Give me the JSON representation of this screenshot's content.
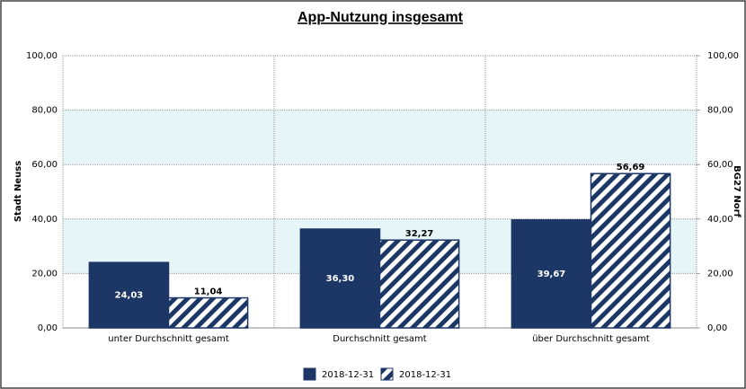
{
  "chart_data": {
    "type": "bar",
    "title": "App-Nutzung insgesamt",
    "ylabel": "Stadt Neuss",
    "y2label": "BG27 Norf",
    "categories": [
      "unter Durchschnitt gesamt",
      "Durchschnitt gesamt",
      "über Durchschnitt gesamt"
    ],
    "series": [
      {
        "name": "2018-12-31",
        "color": "#1c3766",
        "hatch": false,
        "values": [
          24.03,
          36.3,
          39.67
        ],
        "value_labels": [
          "24,03",
          "36,30",
          "39,67"
        ]
      },
      {
        "name": "2018-12-31",
        "color": "#1c3766",
        "hatch": true,
        "axis": "y2",
        "values": [
          11.04,
          32.27,
          56.69
        ],
        "value_labels": [
          "11,04",
          "32,27",
          "56,69"
        ]
      }
    ],
    "ylim": [
      0,
      100
    ],
    "yticks": [
      {
        "value": 0,
        "label": "0,00"
      },
      {
        "value": 20,
        "label": "20,00"
      },
      {
        "value": 40,
        "label": "40,00"
      },
      {
        "value": 60,
        "label": "60,00"
      },
      {
        "value": 80,
        "label": "80,00"
      },
      {
        "value": 100,
        "label": "100,00"
      }
    ],
    "y2lim": [
      0,
      100
    ],
    "y2ticks": [
      {
        "value": 0,
        "label": "0,00"
      },
      {
        "value": 20,
        "label": "20,00"
      },
      {
        "value": 40,
        "label": "40,00"
      },
      {
        "value": 60,
        "label": "60,00"
      },
      {
        "value": 80,
        "label": "80,00"
      },
      {
        "value": 100,
        "label": "100,00"
      }
    ],
    "grid": true,
    "band_color": "#e6f5f7",
    "legend": "bottom"
  }
}
